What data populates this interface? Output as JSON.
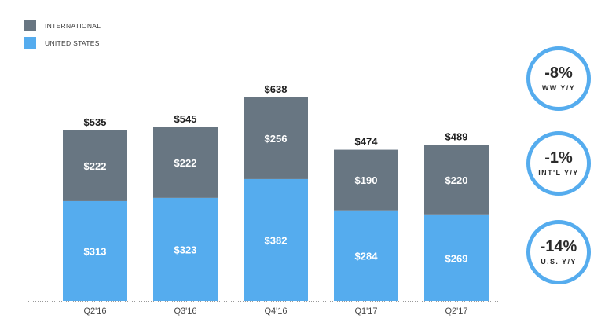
{
  "chart_data": {
    "type": "bar",
    "stacked": true,
    "title": "",
    "xlabel": "",
    "ylabel": "",
    "ylim": [
      0,
      638
    ],
    "categories": [
      "Q2'16",
      "Q3'16",
      "Q4'16",
      "Q1'17",
      "Q2'17"
    ],
    "series": [
      {
        "name": "UNITED STATES",
        "color": "#55acee",
        "values": [
          313,
          323,
          382,
          284,
          269
        ],
        "labels": [
          "$313",
          "$323",
          "$382",
          "$284",
          "$269"
        ]
      },
      {
        "name": "INTERNATIONAL",
        "color": "#687682",
        "values": [
          222,
          222,
          256,
          190,
          220
        ],
        "labels": [
          "$222",
          "$222",
          "$256",
          "$190",
          "$220"
        ]
      }
    ],
    "totals": [
      535,
      545,
      638,
      474,
      489
    ],
    "total_labels": [
      "$535",
      "$545",
      "$638",
      "$474",
      "$489"
    ],
    "legend": [
      "INTERNATIONAL",
      "UNITED STATES"
    ]
  },
  "legend": {
    "international": {
      "label": "INTERNATIONAL",
      "color": "#687682"
    },
    "us": {
      "label": "UNITED STATES",
      "color": "#55acee"
    }
  },
  "kpis": [
    {
      "value": "-8%",
      "label": "WW Y/Y"
    },
    {
      "value": "-1%",
      "label": "INT'L Y/Y"
    },
    {
      "value": "-14%",
      "label": "U.S. Y/Y"
    }
  ]
}
